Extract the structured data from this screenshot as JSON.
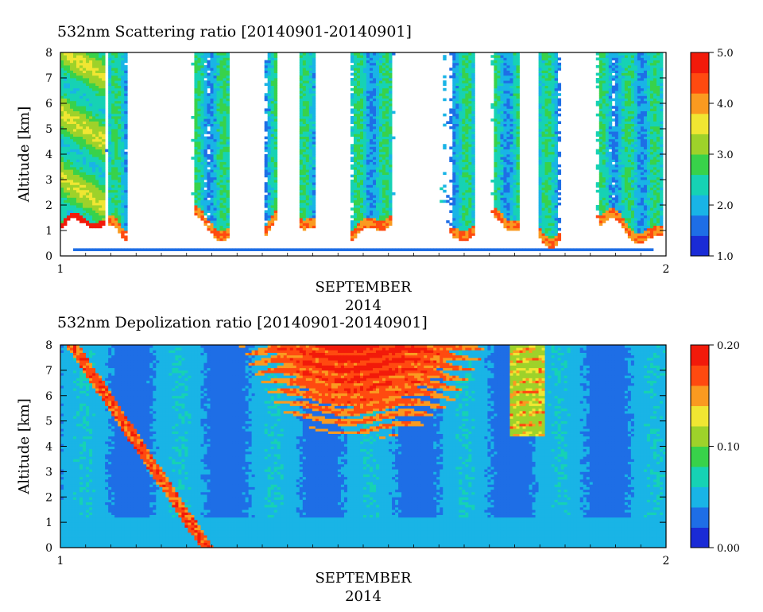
{
  "chart_data": [
    {
      "type": "heatmap",
      "title": "532nm Scattering ratio [20140901-20140901]",
      "ylabel": "Altitude [km]",
      "xlabel": "SEPTEMBER",
      "xlabel2": "2014",
      "ylim": [
        0,
        8
      ],
      "yticks": [
        "0",
        "1",
        "2",
        "3",
        "4",
        "5",
        "6",
        "7",
        "8"
      ],
      "xticks": [
        "1",
        "2"
      ],
      "colorbar": {
        "range": [
          1.0,
          5.0
        ],
        "ticks": [
          "1.0",
          "2.0",
          "3.0",
          "4.0",
          "5.0"
        ]
      }
    },
    {
      "type": "heatmap",
      "title": "532nm Depolization ratio [20140901-20140901]",
      "ylabel": "Altitude [km]",
      "xlabel": "SEPTEMBER",
      "xlabel2": "2014",
      "ylim": [
        0,
        8
      ],
      "yticks": [
        "0",
        "1",
        "2",
        "3",
        "4",
        "5",
        "6",
        "7",
        "8"
      ],
      "xticks": [
        "1",
        "2"
      ],
      "colorbar": {
        "range": [
          0.0,
          0.2
        ],
        "ticks": [
          "0.00",
          "0.10",
          "0.20"
        ]
      }
    }
  ],
  "colors": {
    "scale": [
      "#1a2bd6",
      "#1e6ee6",
      "#19b4e6",
      "#16d2b4",
      "#38d24a",
      "#9ed22a",
      "#f0e632",
      "#fa9a20",
      "#ff4a10",
      "#f21a0a"
    ]
  }
}
